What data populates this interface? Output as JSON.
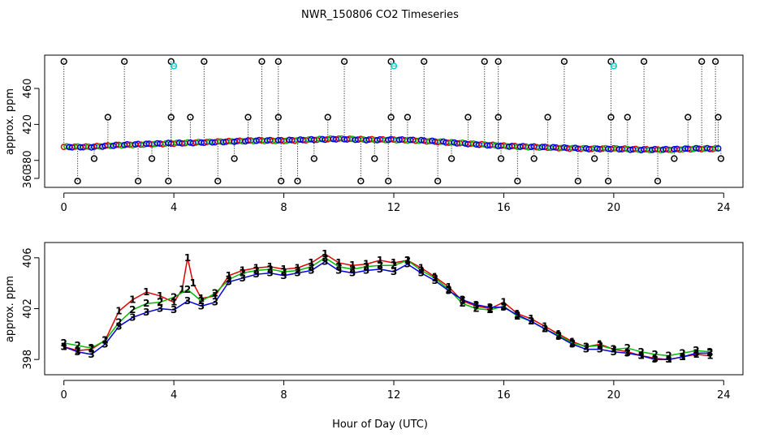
{
  "figure_title": "NWR_150806  CO2 Timeseries",
  "x_axis_label": "Hour of Day (UTC)",
  "colors": {
    "background": "#ffffff",
    "frame": "#000000",
    "circle_outline": "#000000",
    "dotted_line": "#000000",
    "red": "#e00000",
    "green": "#00bb00",
    "blue": "#0000dd",
    "cyan": "#00cccc"
  },
  "chart_data": [
    {
      "type": "scatter",
      "title": "NWR_150806  CO2 Timeseries",
      "xlabel": "Hour of Day (UTC)",
      "ylabel": "approx. ppm",
      "xlim": [
        -0.7,
        24.7
      ],
      "ylim": [
        350,
        497
      ],
      "x_ticks": [
        0,
        4,
        8,
        12,
        16,
        20,
        24
      ],
      "y_ticks": [
        360,
        380,
        420,
        460
      ],
      "x_tick_labels": [
        "0",
        "4",
        "8",
        "12",
        "16",
        "20",
        "24"
      ],
      "y_tick_labels": [
        "360",
        "380",
        "420",
        "460"
      ],
      "grid": false,
      "baseline_series": {
        "description": "dense colored point band",
        "x": [
          0,
          1,
          2,
          3,
          4,
          5,
          6,
          7,
          8,
          9,
          10,
          11,
          12,
          13,
          14,
          15,
          16,
          17,
          18,
          19,
          20,
          21,
          22,
          23,
          23.8
        ],
        "y": [
          395,
          395,
          397,
          398,
          399,
          400,
          401,
          402,
          402,
          403,
          404,
          403,
          403,
          402,
          400,
          398,
          396,
          395,
          394,
          393,
          393,
          392,
          392,
          393,
          393
        ]
      },
      "flagged_high": {
        "x": [
          0,
          2.2,
          3.9,
          5.1,
          7.2,
          7.8,
          10.2,
          11.9,
          13.1,
          15.3,
          15.8,
          18.2,
          19.9,
          21.1,
          23.2,
          23.7
        ],
        "y": [
          490,
          490,
          490,
          490,
          490,
          490,
          490,
          490,
          490,
          490,
          490,
          490,
          490,
          490,
          490,
          490
        ]
      },
      "flagged_mid": {
        "x": [
          1.6,
          3.9,
          4.6,
          6.7,
          7.8,
          9.6,
          11.9,
          12.5,
          14.7,
          15.8,
          17.6,
          19.9,
          20.5,
          22.7,
          23.8
        ],
        "y": [
          428,
          428,
          428,
          428,
          428,
          428,
          428,
          428,
          428,
          428,
          428,
          428,
          428,
          428,
          428
        ]
      },
      "flagged_low": {
        "x": [
          0.5,
          1.1,
          2.7,
          3.2,
          3.8,
          5.6,
          6.2,
          7.9,
          8.5,
          9.1,
          10.8,
          11.3,
          11.8,
          13.6,
          14.1,
          15.9,
          16.5,
          17.1,
          18.7,
          19.3,
          19.8,
          21.6,
          22.2,
          23.9
        ],
        "y": [
          357,
          382,
          357,
          382,
          357,
          357,
          382,
          357,
          357,
          382,
          357,
          382,
          357,
          357,
          382,
          382,
          357,
          382,
          357,
          382,
          357,
          357,
          382,
          382
        ]
      },
      "cyan_points": {
        "x": [
          4.0,
          12.0,
          20.0
        ],
        "y": [
          485,
          485,
          485
        ]
      }
    },
    {
      "type": "scatter",
      "xlabel": "Hour of Day (UTC)",
      "ylabel": "approx. ppm",
      "xlim": [
        -0.7,
        24.7
      ],
      "ylim": [
        396.8,
        407.2
      ],
      "x_ticks": [
        0,
        4,
        8,
        12,
        16,
        20,
        24
      ],
      "y_ticks": [
        398,
        402,
        406
      ],
      "x_tick_labels": [
        "0",
        "4",
        "8",
        "12",
        "16",
        "20",
        "24"
      ],
      "y_tick_labels": [
        "398",
        "402",
        "406"
      ],
      "grid": false,
      "series": [
        {
          "name": "1",
          "color": "red",
          "marker_glyph": "1",
          "x": [
            0,
            0.5,
            1,
            1.5,
            2,
            2.5,
            3,
            3.5,
            4,
            4.3,
            4.5,
            4.7,
            5,
            5.5,
            6,
            6.5,
            7,
            7.5,
            8,
            8.5,
            9,
            9.5,
            10,
            10.5,
            11,
            11.5,
            12,
            12.5,
            13,
            13.5,
            14,
            14.5,
            15,
            15.5,
            16,
            16.5,
            17,
            17.5,
            18,
            18.5,
            19,
            19.5,
            20,
            20.5,
            21,
            21.5,
            22,
            22.5,
            23,
            23.5
          ],
          "y": [
            399.0,
            398.7,
            398.8,
            399.5,
            401.8,
            402.7,
            403.3,
            403.0,
            402.5,
            403.5,
            406.0,
            404.0,
            402.8,
            403.0,
            404.6,
            405.0,
            405.2,
            405.3,
            405.1,
            405.2,
            405.6,
            406.3,
            405.6,
            405.4,
            405.5,
            405.8,
            405.6,
            405.8,
            405.2,
            404.5,
            403.7,
            402.6,
            402.2,
            402.0,
            402.5,
            401.6,
            401.2,
            400.6,
            400.0,
            399.4,
            399.0,
            399.2,
            398.8,
            398.6,
            398.3,
            398.1,
            398.0,
            398.2,
            398.4,
            398.3
          ]
        },
        {
          "name": "2",
          "color": "green",
          "marker_glyph": "2",
          "x": [
            0,
            0.5,
            1,
            1.5,
            2,
            2.5,
            3,
            3.5,
            4,
            4.5,
            5,
            5.5,
            6,
            6.5,
            7,
            7.5,
            8,
            8.5,
            9,
            9.5,
            10,
            10.5,
            11,
            11.5,
            12,
            12.5,
            13,
            13.5,
            14,
            14.5,
            15,
            15.5,
            16,
            16.5,
            17,
            17.5,
            18,
            18.5,
            19,
            19.5,
            20,
            20.5,
            21,
            21.5,
            22,
            22.5,
            23,
            23.5
          ],
          "y": [
            399.3,
            399.1,
            398.9,
            399.5,
            400.9,
            401.9,
            402.4,
            402.5,
            402.9,
            403.5,
            402.6,
            403.2,
            404.3,
            404.8,
            405.0,
            405.1,
            404.9,
            405.0,
            405.3,
            406.0,
            405.3,
            405.1,
            405.3,
            405.4,
            405.4,
            405.8,
            405.0,
            404.4,
            403.5,
            402.4,
            402.0,
            401.9,
            402.2,
            401.4,
            401.0,
            400.4,
            399.9,
            399.3,
            399.0,
            399.1,
            398.8,
            398.9,
            398.6,
            398.4,
            398.3,
            398.5,
            398.7,
            398.6
          ]
        },
        {
          "name": "3",
          "color": "blue",
          "marker_glyph": "3",
          "x": [
            0,
            0.5,
            1,
            1.5,
            2,
            2.5,
            3,
            3.5,
            4,
            4.5,
            5,
            5.5,
            6,
            6.5,
            7,
            7.5,
            8,
            8.5,
            9,
            9.5,
            10,
            10.5,
            11,
            11.5,
            12,
            12.5,
            13,
            13.5,
            14,
            14.5,
            15,
            15.5,
            16,
            16.5,
            17,
            17.5,
            18,
            18.5,
            19,
            19.5,
            20,
            20.5,
            21,
            21.5,
            22,
            22.5,
            23,
            23.5
          ],
          "y": [
            399.0,
            398.6,
            398.4,
            399.2,
            400.6,
            401.3,
            401.7,
            402.0,
            401.9,
            402.6,
            402.2,
            402.5,
            404.1,
            404.4,
            404.7,
            404.8,
            404.6,
            404.8,
            405.0,
            405.7,
            405.0,
            404.8,
            405.0,
            405.1,
            404.9,
            405.5,
            404.8,
            404.2,
            403.4,
            402.7,
            402.3,
            402.1,
            402.1,
            401.5,
            401.0,
            400.4,
            399.8,
            399.2,
            398.8,
            398.8,
            398.6,
            398.5,
            398.3,
            398.0,
            398.0,
            398.2,
            398.5,
            398.5
          ]
        }
      ]
    }
  ]
}
